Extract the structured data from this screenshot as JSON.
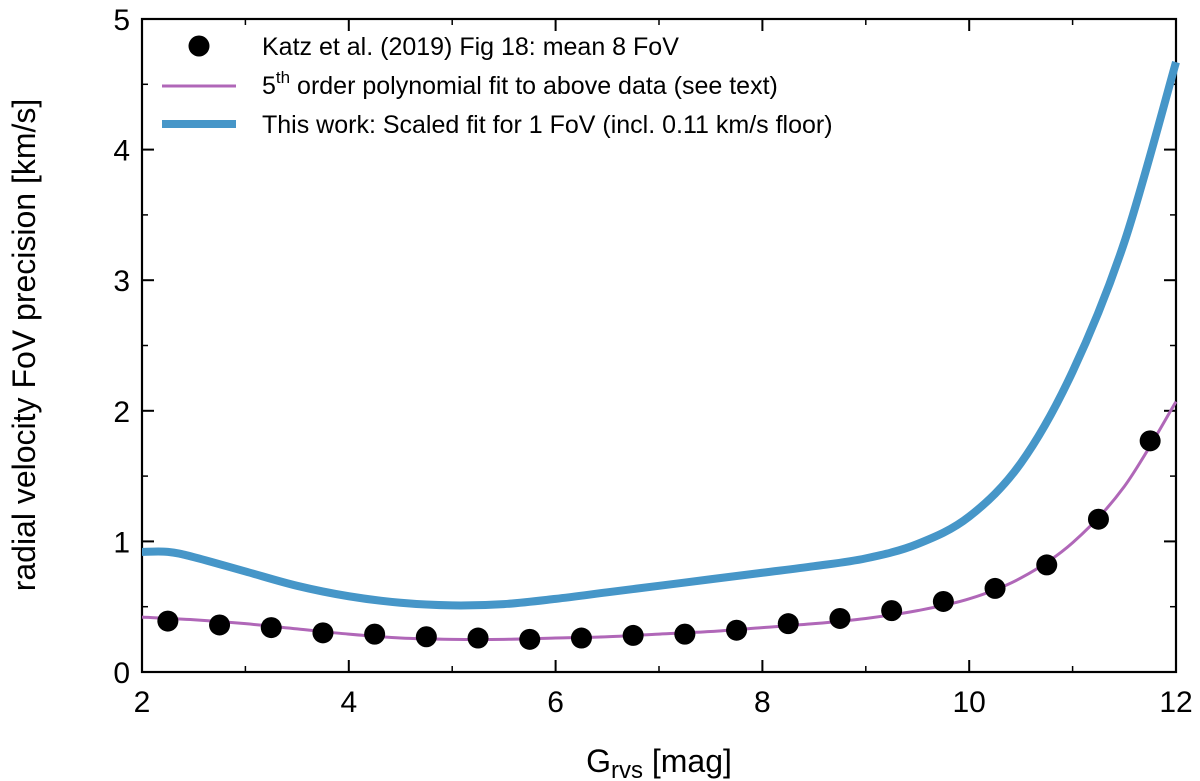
{
  "chart_data": {
    "type": "scatter+line",
    "title": "",
    "xlabel_main": "G",
    "xlabel_sub": "rvs",
    "xlabel_unit": " [mag]",
    "ylabel": "radial velocity FoV precision [km/s]",
    "xlim": [
      2,
      12
    ],
    "ylim": [
      0,
      5
    ],
    "xticks": [
      2,
      4,
      6,
      8,
      10,
      12
    ],
    "xticks_minor": [
      3,
      5,
      7,
      9,
      11
    ],
    "yticks": [
      0,
      1,
      2,
      3,
      4,
      5
    ],
    "yticks_minor": [
      0.5,
      1.5,
      2.5,
      3.5,
      4.5
    ],
    "grid": false,
    "legend_position": "top-left",
    "legend": {
      "scatter_label": "Katz et al. (2019) Fig 18: mean 8 FoV",
      "poly_label_pre": "5",
      "poly_label_sup": "th",
      "poly_label_post": " order polynomial fit to above data (see text)",
      "scaled_label": "This work: Scaled fit for 1 FoV (incl. 0.11 km/s floor)"
    },
    "series": [
      {
        "name": "Katz et al. (2019) Fig 18: mean 8 FoV",
        "kind": "scatter",
        "color": "#000000",
        "x": [
          2.25,
          2.75,
          3.25,
          3.75,
          4.25,
          4.75,
          5.25,
          5.75,
          6.25,
          6.75,
          7.25,
          7.75,
          8.25,
          8.75,
          9.25,
          9.75,
          10.25,
          10.75,
          11.25,
          11.75
        ],
        "y": [
          0.39,
          0.36,
          0.34,
          0.3,
          0.29,
          0.27,
          0.26,
          0.25,
          0.26,
          0.28,
          0.29,
          0.32,
          0.37,
          0.41,
          0.47,
          0.54,
          0.64,
          0.82,
          1.17,
          1.77
        ]
      },
      {
        "name": "5th order polynomial fit to above data (see text)",
        "kind": "line",
        "color": "#b067b8",
        "x": [
          2.0,
          2.5,
          3.0,
          3.5,
          4.0,
          4.5,
          5.0,
          5.5,
          6.0,
          6.5,
          7.0,
          7.5,
          8.0,
          8.5,
          9.0,
          9.5,
          10.0,
          10.5,
          11.0,
          11.5,
          12.0
        ],
        "y": [
          0.42,
          0.4,
          0.37,
          0.33,
          0.29,
          0.26,
          0.25,
          0.25,
          0.26,
          0.27,
          0.29,
          0.31,
          0.34,
          0.37,
          0.41,
          0.47,
          0.56,
          0.72,
          0.99,
          1.42,
          2.07
        ]
      },
      {
        "name": "This work: Scaled fit for 1 FoV (incl. 0.11 km/s floor)",
        "kind": "line",
        "color": "#4696c8",
        "x": [
          2.0,
          2.25,
          2.5,
          3.0,
          3.5,
          4.0,
          4.5,
          5.0,
          5.5,
          6.0,
          6.5,
          7.0,
          7.5,
          8.0,
          8.5,
          9.0,
          9.5,
          10.0,
          10.5,
          11.0,
          11.5,
          12.0
        ],
        "y": [
          0.92,
          0.92,
          0.88,
          0.77,
          0.66,
          0.58,
          0.53,
          0.51,
          0.52,
          0.56,
          0.61,
          0.66,
          0.71,
          0.76,
          0.81,
          0.87,
          0.98,
          1.19,
          1.6,
          2.3,
          3.29,
          4.67
        ]
      }
    ]
  }
}
